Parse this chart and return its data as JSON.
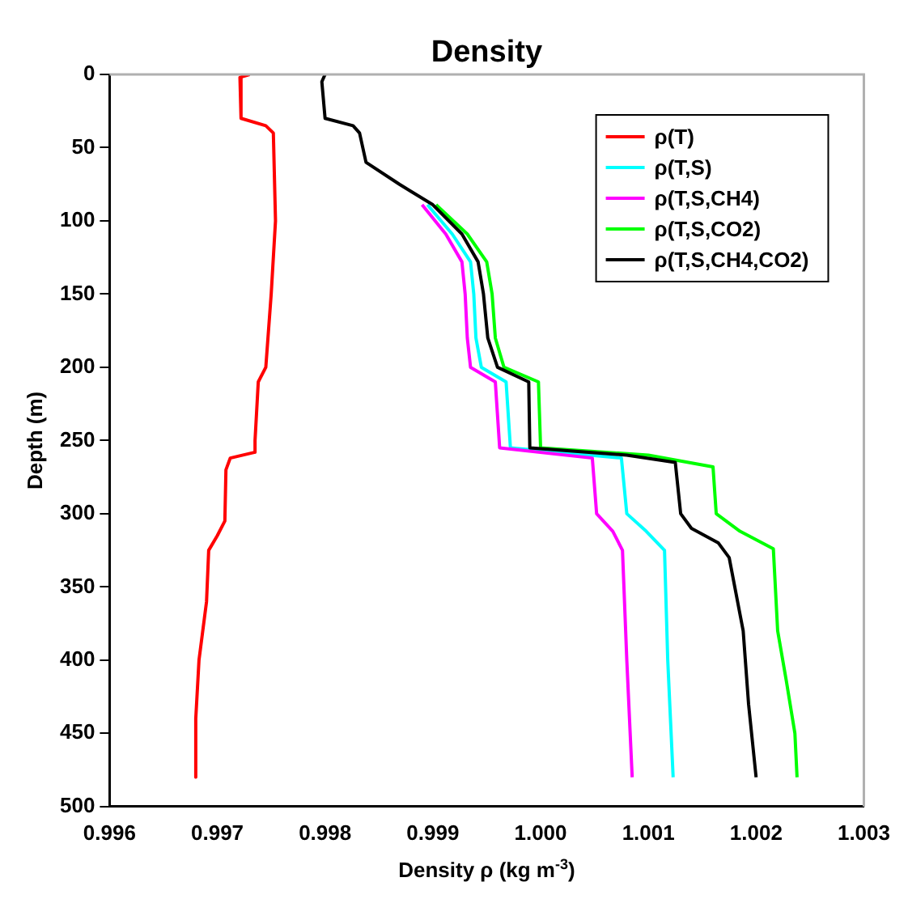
{
  "chart_data": {
    "type": "line",
    "title": "Density",
    "xlabel": "Density ρ (kg m$^{-3}$)",
    "ylabel": "Depth (m)",
    "xlim": [
      0.996,
      1.003
    ],
    "xticks": [
      0.996,
      0.997,
      0.998,
      0.999,
      {
        "value": 1,
        "label": "1.000"
      },
      1.001,
      1.002,
      1.003
    ],
    "ylim": [
      500,
      0
    ],
    "yticks": [
      0,
      50,
      100,
      150,
      200,
      250,
      300,
      350,
      400,
      450,
      500
    ],
    "grid": false,
    "legend": "top right",
    "marker": "none",
    "line_style": "solid",
    "series": [
      {
        "name": "ρ(T)",
        "color": "#ff0000",
        "x": [
          0.9973,
          0.99721,
          0.99722,
          0.99745,
          0.99752,
          0.99754,
          0.9975,
          0.99745,
          0.99738,
          0.99735,
          0.99735,
          0.99712,
          0.99708,
          0.99707,
          0.997,
          0.99692,
          0.9969,
          0.99683,
          0.9968,
          0.9968
        ],
        "values": [
          0,
          2,
          30,
          35,
          40,
          100,
          150,
          200,
          210,
          250,
          258,
          262,
          270,
          305,
          315,
          325,
          360,
          400,
          440,
          480
        ]
      },
      {
        "name": "ρ(T,S)",
        "color": "#00ffff",
        "x": [
          0.99895,
          0.99918,
          0.99935,
          0.99938,
          0.9994,
          0.99945,
          0.99968,
          0.99972,
          1.00075,
          1.0008,
          1.00098,
          1.00115,
          1.00118,
          1.00123
        ],
        "values": [
          89,
          109,
          128,
          150,
          180,
          200,
          210,
          255,
          262,
          300,
          312,
          325,
          400,
          480
        ]
      },
      {
        "name": "ρ(T,S,CH4)",
        "color": "#ff00ff",
        "x": [
          0.9989,
          0.99912,
          0.99927,
          0.9993,
          0.99932,
          0.99935,
          0.99958,
          0.99962,
          1.00048,
          1.00052,
          1.00067,
          1.00076,
          1.0008,
          1.00085
        ],
        "values": [
          89,
          109,
          128,
          150,
          180,
          200,
          210,
          255,
          262,
          300,
          312,
          325,
          400,
          480
        ]
      },
      {
        "name": "ρ(T,S,CO2)",
        "color": "#00ff00",
        "x": [
          0.99903,
          0.99932,
          0.9995,
          0.99955,
          0.99958,
          0.99966,
          0.99998,
          1,
          1.001,
          1.0016,
          1.00163,
          1.00185,
          1.00216,
          1.0022,
          1.00228,
          1.00236,
          1.00238
        ],
        "values": [
          89,
          109,
          128,
          150,
          180,
          200,
          210,
          255,
          260,
          268,
          300,
          312,
          324,
          380,
          414,
          450,
          480
        ]
      },
      {
        "name": "ρ(T,S,CH4,CO2)",
        "color": "#000000",
        "x": [
          0.998,
          0.99797,
          0.998,
          0.99826,
          0.99832,
          0.99838,
          0.99869,
          0.999,
          0.99927,
          0.99942,
          0.99947,
          0.99951,
          0.9996,
          0.99989,
          0.9999,
          1.0008,
          1.00125,
          1.0013,
          1.0014,
          1.00165,
          1.00175,
          1.00188,
          1.00193,
          1.002
        ],
        "values": [
          0,
          5,
          30,
          35,
          40,
          60,
          75,
          89,
          109,
          128,
          150,
          180,
          200,
          210,
          255,
          260,
          265,
          300,
          310,
          320,
          330,
          380,
          430,
          480
        ]
      }
    ]
  }
}
